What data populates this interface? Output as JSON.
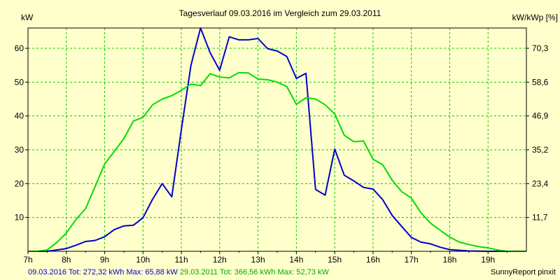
{
  "chart_data": {
    "type": "line",
    "title": "Tagesverlauf 09.03.2016 im Vergleich zum 29.03.2011",
    "ylabel_left": "kW",
    "ylabel_right": "kW/kWp [%]",
    "xlim": [
      7,
      20
    ],
    "ylim": [
      0,
      66
    ],
    "x_ticks": [
      "7h",
      "8h",
      "9h",
      "10h",
      "11h",
      "12h",
      "13h",
      "14h",
      "15h",
      "16h",
      "17h",
      "18h",
      "19h"
    ],
    "y_ticks_left": [
      10,
      20,
      30,
      40,
      50,
      60
    ],
    "y_ticks_right": [
      "11,7",
      "23,4",
      "35,2",
      "46,9",
      "58,6",
      "70,3"
    ],
    "grid": true,
    "series": [
      {
        "name": "09.03.2016",
        "color": "#0000cc",
        "x": [
          7,
          7.5,
          8,
          8.25,
          8.5,
          8.75,
          9,
          9.25,
          9.5,
          9.75,
          10,
          10.25,
          10.5,
          10.75,
          11,
          11.25,
          11.5,
          11.75,
          12,
          12.25,
          12.5,
          12.75,
          13,
          13.25,
          13.5,
          13.75,
          14,
          14.25,
          14.5,
          14.75,
          15,
          15.25,
          15.5,
          15.75,
          16,
          16.25,
          16.5,
          16.75,
          17,
          17.25,
          17.5,
          17.75,
          18,
          18.5,
          19,
          19.5,
          20
        ],
        "y": [
          0,
          0,
          0.8,
          1.8,
          2.9,
          3.2,
          4.3,
          6.4,
          7.5,
          7.7,
          9.9,
          15.4,
          20.0,
          16.1,
          36,
          55,
          66,
          58.7,
          53.5,
          63.4,
          62.5,
          62.5,
          62.9,
          59.9,
          59.2,
          57.6,
          51.1,
          52.6,
          18.3,
          16.6,
          30.2,
          22.5,
          20.8,
          18.9,
          18.4,
          15.3,
          10.6,
          7.3,
          4.1,
          2.7,
          2.2,
          1.2,
          0.5,
          0.1,
          0,
          0,
          0
        ]
      },
      {
        "name": "29.03.2011",
        "color": "#00dd00",
        "x": [
          7,
          7.25,
          7.5,
          7.75,
          8,
          8.25,
          8.5,
          8.75,
          9,
          9.25,
          9.5,
          9.75,
          10,
          10.25,
          10.5,
          10.75,
          11,
          11.25,
          11.5,
          11.75,
          12,
          12.25,
          12.5,
          12.75,
          13,
          13.25,
          13.5,
          13.75,
          14,
          14.25,
          14.5,
          14.75,
          15,
          15.25,
          15.5,
          15.75,
          16,
          16.25,
          16.5,
          16.75,
          17,
          17.25,
          17.5,
          17.75,
          18,
          18.25,
          18.5,
          18.75,
          19,
          19.25,
          19.5,
          19.75,
          20
        ],
        "y": [
          0,
          0,
          0.4,
          2.6,
          5.4,
          9.4,
          12.6,
          19.1,
          25.8,
          29.5,
          33.3,
          38.5,
          39.6,
          43.3,
          45.0,
          46.0,
          47.6,
          49.4,
          49.0,
          52.5,
          51.5,
          51.3,
          52.8,
          52.7,
          50.9,
          50.7,
          50.0,
          48.7,
          43.4,
          45.4,
          45.0,
          43.3,
          40.6,
          34.3,
          32.4,
          32.6,
          27.2,
          25.6,
          21.0,
          17.6,
          15.7,
          11.4,
          8.3,
          6.2,
          4.2,
          2.7,
          2.0,
          1.4,
          1.0,
          0.4,
          0,
          0,
          0
        ]
      }
    ]
  },
  "footer": {
    "series1_text": "09.03.2016 Tot: 272,32 kWh Max: 65,88 kW",
    "series2_text": "29.03.2011 Tot: 366,56 kWh Max: 52,73 kW",
    "credit": "SunnyReport pinxit"
  }
}
